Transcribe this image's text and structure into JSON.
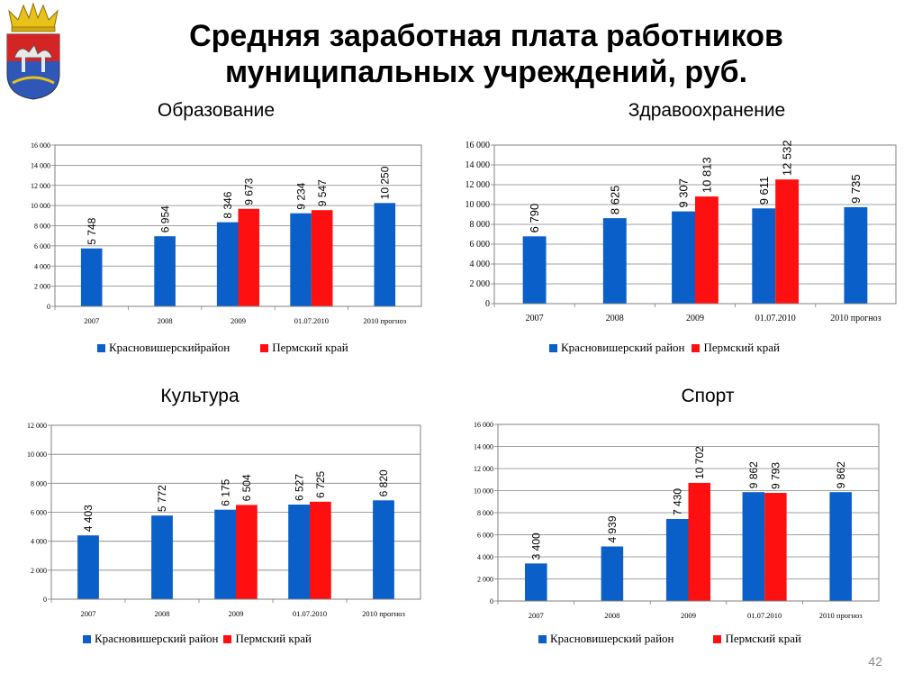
{
  "page": {
    "title_line1": "Средняя заработная плата работников",
    "title_line2": "муниципальных учреждений, руб.",
    "page_number": "42"
  },
  "colors": {
    "district": "#0A5FC8",
    "region": "#FF1010",
    "grid": "#808080"
  },
  "chart_data": [
    {
      "type": "bar",
      "title": "Образование",
      "categories": [
        "2007",
        "2008",
        "2009",
        "01.07.2010",
        "2010 прогноз"
      ],
      "series": [
        {
          "name": "Красновишерскийрайон",
          "values": [
            5748,
            6954,
            8346,
            9234,
            10250
          ],
          "labels": [
            "5 748",
            "6 954",
            "8 346",
            "9 234",
            "10 250"
          ]
        },
        {
          "name": "Пермский край",
          "values": [
            null,
            null,
            9673,
            9547,
            null
          ],
          "labels": [
            "",
            "",
            "9 673",
            "9 547",
            ""
          ]
        }
      ],
      "ylim": [
        0,
        16000
      ],
      "yticks": [
        "0",
        "2 000",
        "4 000",
        "6 000",
        "8 000",
        "10 000",
        "12 000",
        "14 000",
        "16 000"
      ],
      "grid": true,
      "legend_position": "bottom"
    },
    {
      "type": "bar",
      "title": "Здравоохранение",
      "categories": [
        "2007",
        "2008",
        "2009",
        "01.07.2010",
        "2010 прогноз"
      ],
      "series": [
        {
          "name": "Красновишерский район",
          "values": [
            6790,
            8625,
            9307,
            9611,
            9735
          ],
          "labels": [
            "6 790",
            "8 625",
            "9 307",
            "9 611",
            "9 735"
          ]
        },
        {
          "name": "Пермский край",
          "values": [
            null,
            null,
            10813,
            12532,
            null
          ],
          "labels": [
            "",
            "",
            "10 813",
            "12 532",
            ""
          ]
        }
      ],
      "ylim": [
        0,
        16000
      ],
      "yticks": [
        "0",
        "2 000",
        "4 000",
        "6 000",
        "8 000",
        "10 000",
        "12 000",
        "14 000",
        "16 000"
      ],
      "grid": true,
      "legend_position": "bottom"
    },
    {
      "type": "bar",
      "title": "Культура",
      "categories": [
        "2007",
        "2008",
        "2009",
        "01.07.2010",
        "2010 прогноз"
      ],
      "series": [
        {
          "name": "Красновишерский район",
          "values": [
            4403,
            5772,
            6175,
            6527,
            6820
          ],
          "labels": [
            "4 403",
            "5 772",
            "6 175",
            "6 527",
            "6 820"
          ]
        },
        {
          "name": "Пермский край",
          "values": [
            null,
            null,
            6504,
            6725,
            null
          ],
          "labels": [
            "",
            "",
            "6 504",
            "6 725",
            ""
          ]
        }
      ],
      "ylim": [
        0,
        12000
      ],
      "yticks": [
        "0",
        "2 000",
        "4 000",
        "6 000",
        "8 000",
        "10 000",
        "12 000"
      ],
      "grid": true,
      "legend_position": "bottom"
    },
    {
      "type": "bar",
      "title": "Спорт",
      "categories": [
        "2007",
        "2008",
        "2009",
        "01.07.2010",
        "2010 прогноз"
      ],
      "series": [
        {
          "name": "Красновишерский район",
          "values": [
            3400,
            4939,
            7430,
            9862,
            9862
          ],
          "labels": [
            "3 400",
            "4 939",
            "7 430",
            "9 862",
            "9 862"
          ]
        },
        {
          "name": "Пермский край",
          "values": [
            null,
            null,
            10702,
            9793,
            null
          ],
          "labels": [
            "",
            "",
            "10 702",
            "9 793",
            ""
          ]
        }
      ],
      "ylim": [
        0,
        16000
      ],
      "yticks": [
        "0",
        "2 000",
        "4 000",
        "6 000",
        "8 000",
        "10 000",
        "12 000",
        "14 000",
        "16 000"
      ],
      "grid": true,
      "legend_position": "bottom"
    }
  ]
}
